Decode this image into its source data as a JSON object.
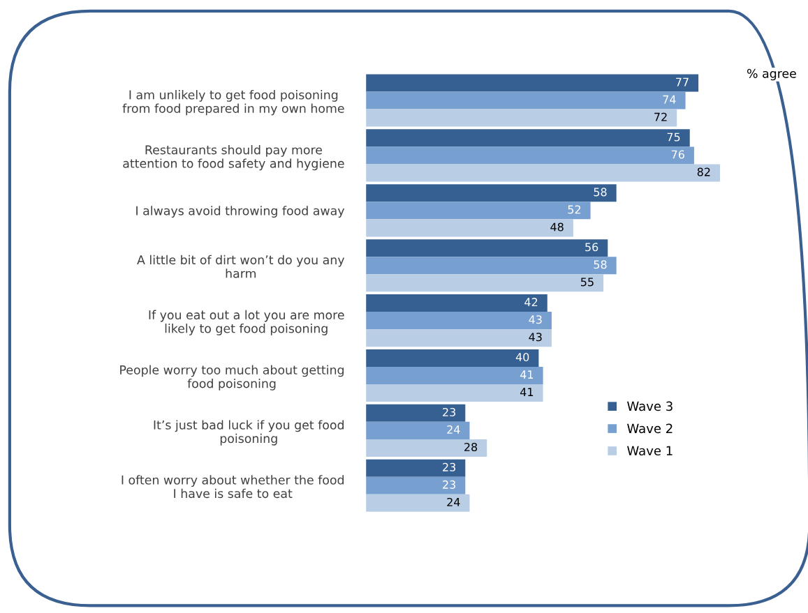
{
  "chart_data": {
    "type": "bar",
    "orientation": "horizontal",
    "categories": [
      "I am unlikely to get food poisoning\nfrom food prepared in my own home",
      "Restaurants should pay more\nattention to food safety and hygiene",
      "I always avoid throwing food away",
      "A little bit of dirt won’t do you any\nharm",
      "If you eat out a lot you are more\nlikely to get food poisoning",
      "People worry too much about getting\nfood poisoning",
      "It’s just bad luck if you get food\npoisoning",
      "I often worry about whether the food\nI have is safe to eat"
    ],
    "series": [
      {
        "name": "Wave 3",
        "color": "#366092",
        "values": [
          77,
          75,
          58,
          56,
          42,
          40,
          23,
          23
        ]
      },
      {
        "name": "Wave 2",
        "color": "#779fd0",
        "values": [
          74,
          76,
          52,
          58,
          43,
          41,
          24,
          23
        ]
      },
      {
        "name": "Wave 1",
        "color": "#b9cde5",
        "values": [
          72,
          82,
          48,
          55,
          43,
          41,
          28,
          24
        ]
      }
    ],
    "data_labels": true,
    "legend": "right",
    "grid": false,
    "annotations": [
      "% agree"
    ]
  }
}
